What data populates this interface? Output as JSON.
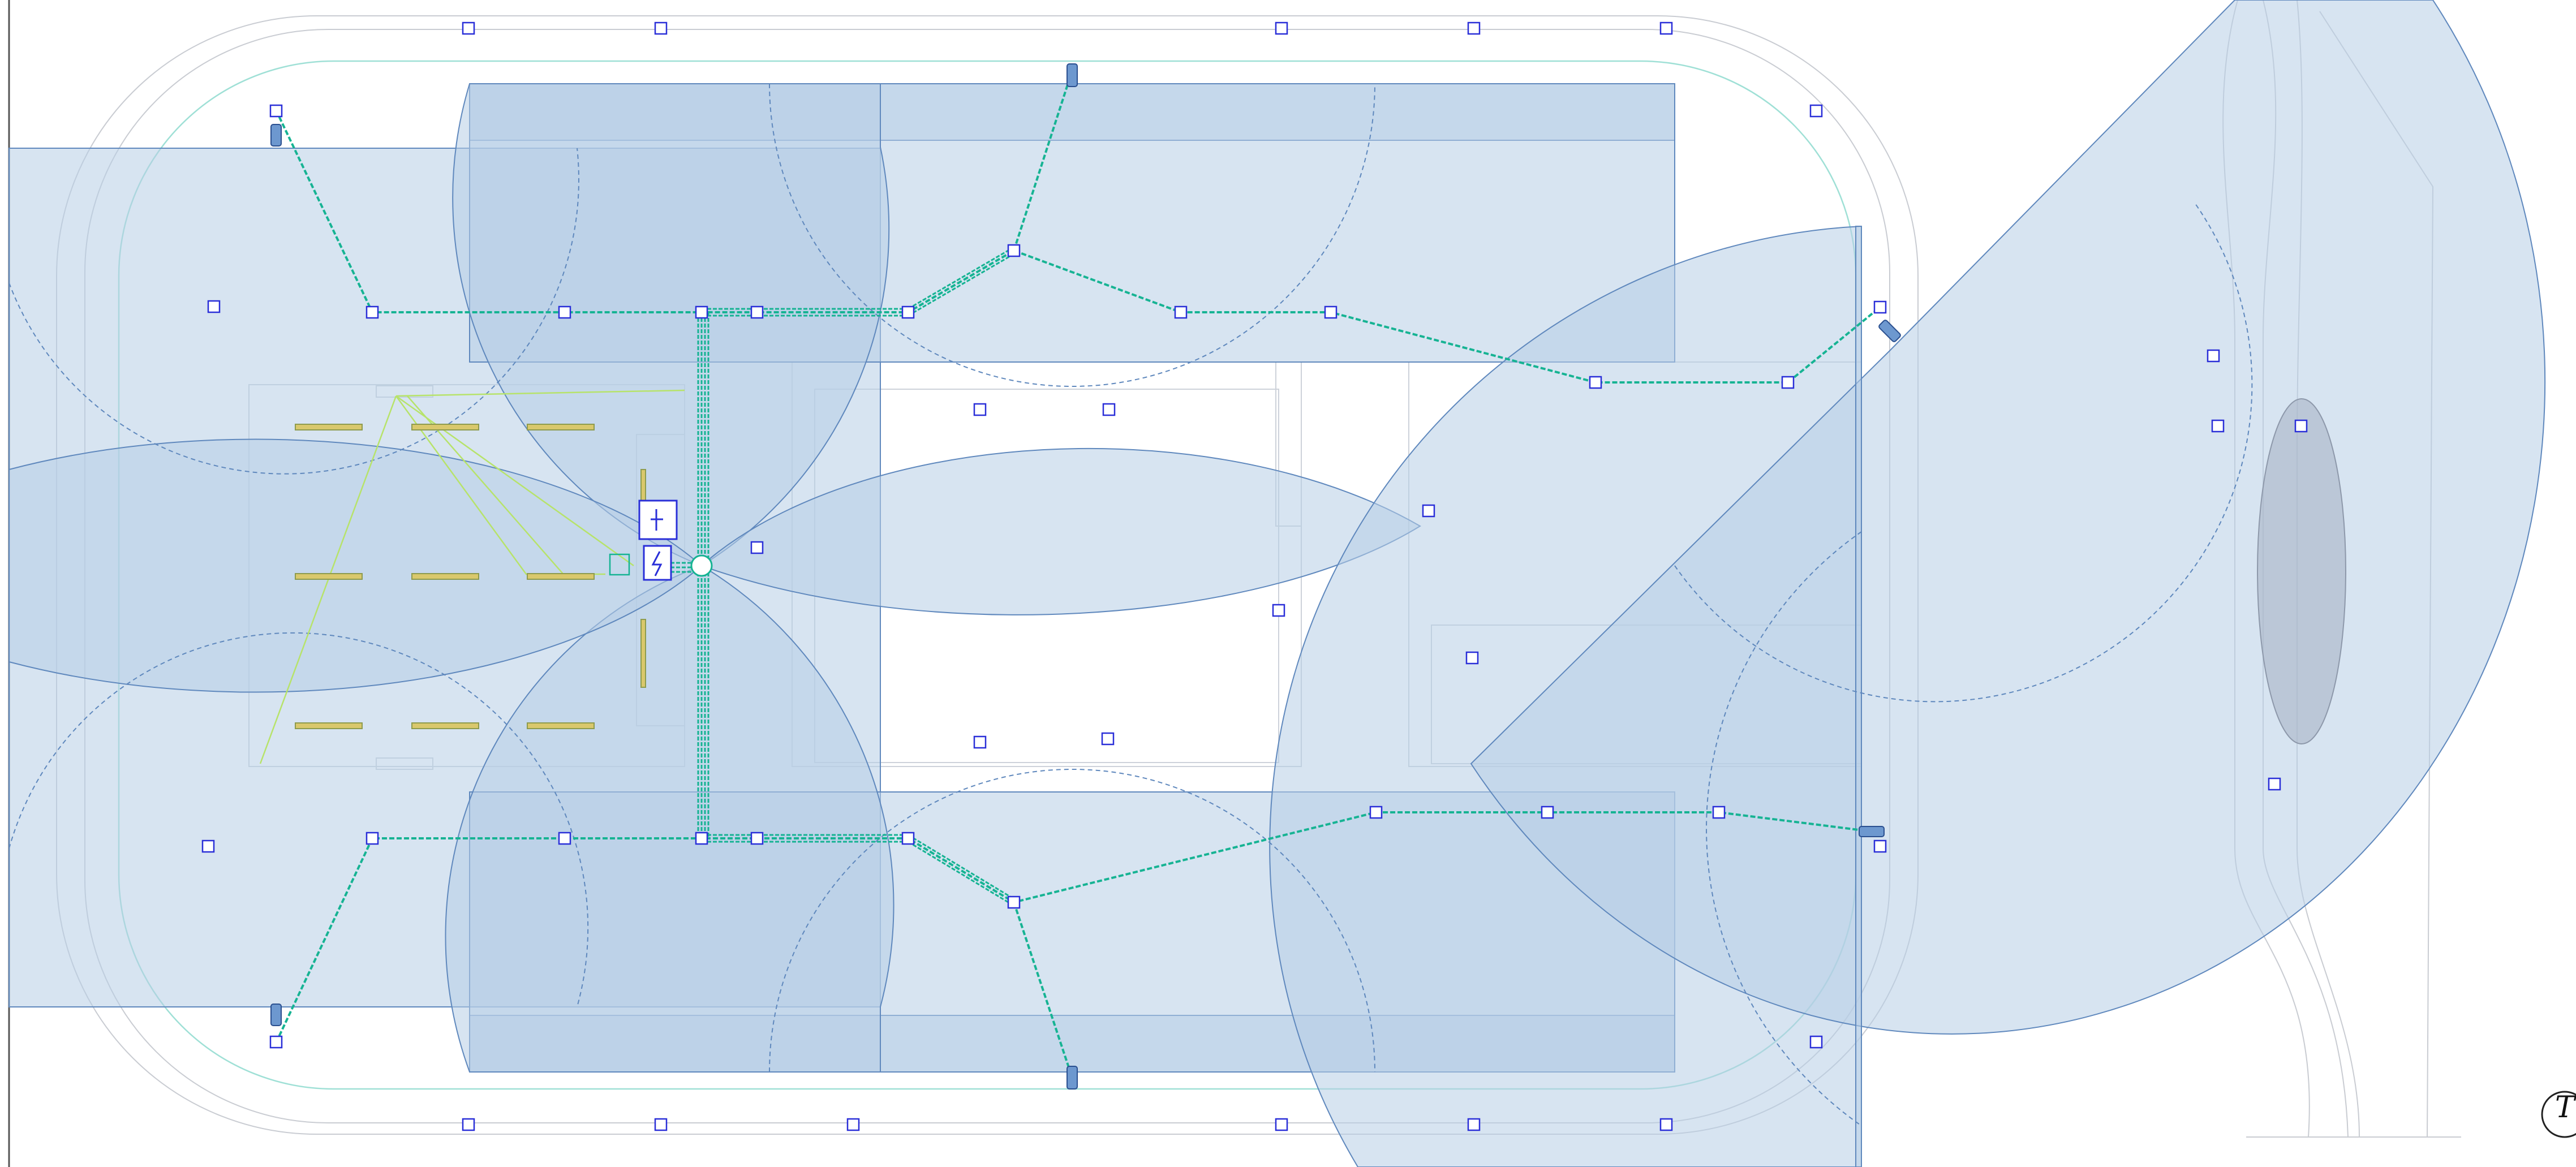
{
  "diagram": {
    "kind": "site-plan-camera-coverage",
    "colors": {
      "background": "#ffffff",
      "coverage_fill": "#b7cde6",
      "coverage_stroke": "#5f88bd",
      "cable": "#16b393",
      "node_stroke": "#2a2fd8",
      "route_outline": "#9fe0d6",
      "road": "#c9ccd2",
      "lime_wire": "#b7e36a",
      "light_bar": "#d9c86c"
    },
    "compass": {
      "symbol": "north-arrow-icon",
      "letter": "T"
    }
  }
}
